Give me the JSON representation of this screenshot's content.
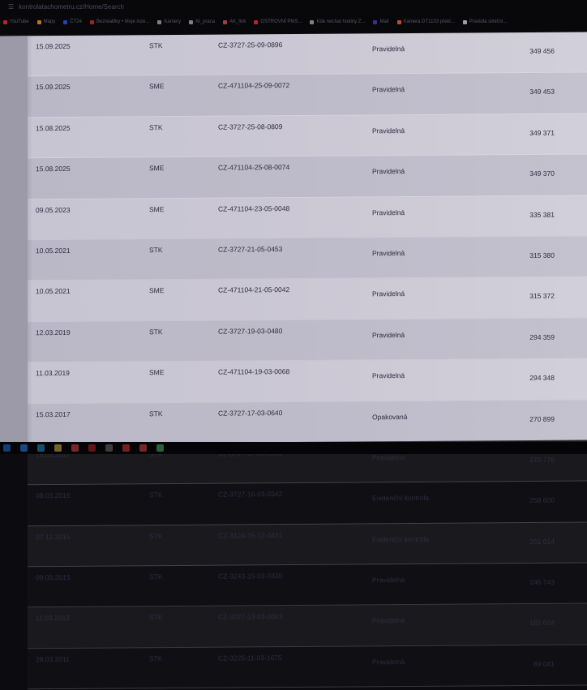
{
  "browser": {
    "url": "kontrolatachometru.cz/Home/Search",
    "bookmarks": [
      {
        "label": "YouTube",
        "color": "#c0202a"
      },
      {
        "label": "Mapy",
        "color": "#c07020"
      },
      {
        "label": "ČT24",
        "color": "#2040c0"
      },
      {
        "label": "Bezrealitky • Moje inze...",
        "color": "#a02020"
      },
      {
        "label": "Kamery",
        "color": "#808080"
      },
      {
        "label": "AI_praca",
        "color": "#808080"
      },
      {
        "label": "AK_link",
        "color": "#a04040"
      },
      {
        "label": "OSTROVNÍ PMS...",
        "color": "#c02020"
      },
      {
        "label": "Kde nechat hodiny Z...",
        "color": "#808080"
      },
      {
        "label": "Mail",
        "color": "#3030a0"
      },
      {
        "label": "Kamera DT1133 překl...",
        "color": "#c05020"
      },
      {
        "label": "Pravidla silniční...",
        "color": "#a0a0a0"
      }
    ]
  },
  "rows": [
    {
      "date": "15.09.2025",
      "type": "STK",
      "number": "CZ-3727-25-09-0896",
      "kind": "Pravidelná",
      "km": "349 456"
    },
    {
      "date": "15.09.2025",
      "type": "SME",
      "number": "CZ-471104-25-09-0072",
      "kind": "Pravidelná",
      "km": "349 453"
    },
    {
      "date": "15.08.2025",
      "type": "STK",
      "number": "CZ-3727-25-08-0809",
      "kind": "Pravidelná",
      "km": "349 371"
    },
    {
      "date": "15.08.2025",
      "type": "SME",
      "number": "CZ-471104-25-08-0074",
      "kind": "Pravidelná",
      "km": "349 370"
    },
    {
      "date": "09.05.2023",
      "type": "SME",
      "number": "CZ-471104-23-05-0048",
      "kind": "Pravidelná",
      "km": "335 381"
    },
    {
      "date": "10.05.2021",
      "type": "STK",
      "number": "CZ-3727-21-05-0453",
      "kind": "Pravidelná",
      "km": "315 380"
    },
    {
      "date": "10.05.2021",
      "type": "SME",
      "number": "CZ-471104-21-05-0042",
      "kind": "Pravidelná",
      "km": "315 372"
    },
    {
      "date": "12.03.2019",
      "type": "STK",
      "number": "CZ-3727-19-03-0480",
      "kind": "Pravidelná",
      "km": "294 359"
    },
    {
      "date": "11.03.2019",
      "type": "SME",
      "number": "CZ-471104-19-03-0068",
      "kind": "Pravidelná",
      "km": "294 348"
    },
    {
      "date": "15.03.2017",
      "type": "STK",
      "number": "CZ-3727-17-03-0640",
      "kind": "Opakovaná",
      "km": "270 899"
    },
    {
      "date": "14.03.2017",
      "type": "STK",
      "number": "CZ-3727-17-03-0560",
      "kind": "Pravidelná",
      "km": "270 776"
    },
    {
      "date": "08.03.2016",
      "type": "STK",
      "number": "CZ-3727-16-03-0342",
      "kind": "Evidenční kontrola",
      "km": "258 600"
    },
    {
      "date": "07.12.2015",
      "type": "STK",
      "number": "CZ-3124-15-12-0431",
      "kind": "Evidenční kontrola",
      "km": "251 014"
    },
    {
      "date": "09.03.2015",
      "type": "STK",
      "number": "CZ-3243-15-03-0330",
      "kind": "Pravidelná",
      "km": "246 743"
    },
    {
      "date": "11.03.2013",
      "type": "STK",
      "number": "CZ-3227-13-03-0663",
      "kind": "Pravidelná",
      "km": "165 624"
    },
    {
      "date": "28.03.2011",
      "type": "STK",
      "number": "CZ-3225-11-03-1675",
      "kind": "Pravidelná",
      "km": "89 041"
    }
  ],
  "taskbar": {
    "icons": [
      {
        "name": "start-icon",
        "color": "#2060c0"
      },
      {
        "name": "search-icon",
        "color": "#3070d0"
      },
      {
        "name": "edge-icon",
        "color": "#2080b0"
      },
      {
        "name": "explorer-icon",
        "color": "#c0a040"
      },
      {
        "name": "app-icon",
        "color": "#c04040"
      },
      {
        "name": "app-icon",
        "color": "#a02020"
      },
      {
        "name": "app-icon",
        "color": "#606060"
      },
      {
        "name": "app-icon",
        "color": "#c03030"
      },
      {
        "name": "app-icon",
        "color": "#c04040"
      },
      {
        "name": "chrome-icon",
        "color": "#40a060"
      }
    ]
  }
}
